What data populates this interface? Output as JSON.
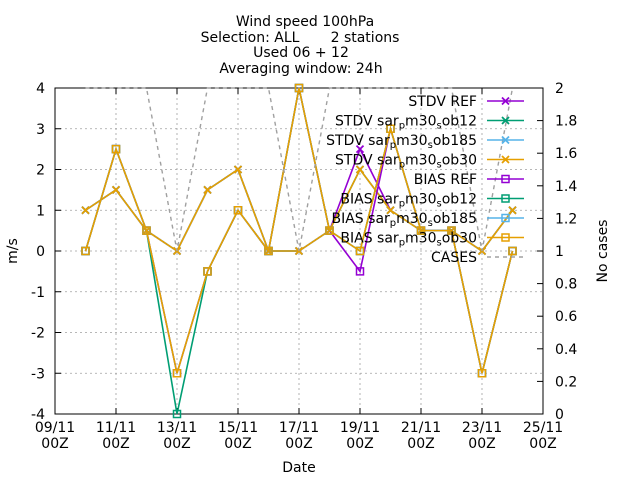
{
  "title_lines": [
    "Wind speed 100hPa",
    "Selection: ALL       2 stations",
    "Used 06 + 12",
    "Averaging window: 24h"
  ],
  "colors": {
    "ref": "#9400d3",
    "m30sob12": "#009e73",
    "m30sob185": "#56b4e9",
    "m30sob30": "#e69f00",
    "cases": "#a0a0a0",
    "grid": "#a0a0a0"
  },
  "chart_data": {
    "type": "line",
    "xlabel": "Date",
    "ylabel": "m/s",
    "y2label": "No cases",
    "x_ticks": [
      {
        "top": "09/11",
        "bottom": "00Z"
      },
      {
        "top": "11/11",
        "bottom": "00Z"
      },
      {
        "top": "13/11",
        "bottom": "00Z"
      },
      {
        "top": "15/11",
        "bottom": "00Z"
      },
      {
        "top": "17/11",
        "bottom": "00Z"
      },
      {
        "top": "19/11",
        "bottom": "00Z"
      },
      {
        "top": "21/11",
        "bottom": "00Z"
      },
      {
        "top": "23/11",
        "bottom": "00Z"
      },
      {
        "top": "25/11",
        "bottom": "00Z"
      }
    ],
    "xlim": [
      9,
      25
    ],
    "ylim": [
      -4,
      4
    ],
    "y_ticks": [
      "-4",
      "-3",
      "-2",
      "-1",
      "0",
      "1",
      "2",
      "3",
      "4"
    ],
    "y2lim": [
      0,
      2
    ],
    "y2_ticks": [
      "0",
      "0.2",
      "0.4",
      "0.6",
      "0.8",
      "1",
      "1.2",
      "1.4",
      "1.6",
      "1.8",
      "2"
    ],
    "grid": true,
    "legend_position": "top-right",
    "series": [
      {
        "name": "STDV REF",
        "color_key": "ref",
        "marker": "x",
        "axis": "y",
        "points": [
          [
            10,
            1
          ],
          [
            11,
            1.5
          ],
          [
            12,
            0.5
          ],
          [
            13,
            0
          ],
          [
            14,
            1.5
          ],
          [
            15,
            2
          ],
          [
            16,
            0
          ],
          [
            17,
            0
          ],
          [
            18,
            0.5
          ],
          [
            19,
            2.5
          ],
          [
            20,
            1
          ],
          [
            21,
            0.5
          ],
          [
            22,
            0.5
          ],
          [
            23,
            0
          ],
          [
            24,
            1
          ]
        ]
      },
      {
        "name": "STDV sar_pm30_sob12",
        "color_key": "m30sob12",
        "marker": "x",
        "axis": "y",
        "points": [
          [
            10,
            1
          ],
          [
            11,
            1.5
          ],
          [
            12,
            0.5
          ],
          [
            13,
            0
          ],
          [
            14,
            1.5
          ],
          [
            15,
            2
          ],
          [
            16,
            0
          ],
          [
            17,
            0
          ],
          [
            18,
            0.5
          ],
          [
            19,
            2
          ],
          [
            20,
            1
          ],
          [
            21,
            0.5
          ],
          [
            22,
            0.5
          ],
          [
            23,
            0
          ],
          [
            24,
            1
          ]
        ]
      },
      {
        "name": "STDV sar_pm30_sob185",
        "color_key": "m30sob185",
        "marker": "x",
        "axis": "y",
        "points": [
          [
            10,
            1
          ],
          [
            11,
            1.5
          ],
          [
            12,
            0.5
          ],
          [
            13,
            0
          ],
          [
            14,
            1.5
          ],
          [
            15,
            2
          ],
          [
            16,
            0
          ],
          [
            17,
            0
          ],
          [
            18,
            0.5
          ],
          [
            19,
            2
          ],
          [
            20,
            1
          ],
          [
            21,
            0.5
          ],
          [
            22,
            0.5
          ],
          [
            23,
            0
          ],
          [
            24,
            1
          ]
        ]
      },
      {
        "name": "STDV sar_pm30_sob30",
        "color_key": "m30sob30",
        "marker": "x",
        "axis": "y",
        "points": [
          [
            10,
            1
          ],
          [
            11,
            1.5
          ],
          [
            12,
            0.5
          ],
          [
            13,
            0
          ],
          [
            14,
            1.5
          ],
          [
            15,
            2
          ],
          [
            16,
            0
          ],
          [
            17,
            0
          ],
          [
            18,
            0.5
          ],
          [
            19,
            2
          ],
          [
            20,
            1
          ],
          [
            21,
            0.5
          ],
          [
            22,
            0.5
          ],
          [
            23,
            0
          ],
          [
            24,
            1
          ]
        ]
      },
      {
        "name": "BIAS REF",
        "color_key": "ref",
        "marker": "square",
        "axis": "y",
        "points": [
          [
            10,
            0
          ],
          [
            11,
            2.5
          ],
          [
            12,
            0.5
          ],
          [
            13,
            -3
          ],
          [
            14,
            -0.5
          ],
          [
            15,
            1
          ],
          [
            16,
            0
          ],
          [
            17,
            4
          ],
          [
            18,
            0.5
          ],
          [
            19,
            -0.5
          ],
          [
            20,
            3
          ],
          [
            21,
            0.5
          ],
          [
            22,
            0.5
          ],
          [
            23,
            -3
          ],
          [
            24,
            0
          ]
        ]
      },
      {
        "name": "BIAS sar_pm30_sob12",
        "color_key": "m30sob12",
        "marker": "square",
        "axis": "y",
        "points": [
          [
            10,
            0
          ],
          [
            11,
            2.5
          ],
          [
            12,
            0.5
          ],
          [
            13,
            -4
          ],
          [
            14,
            -0.5
          ],
          [
            15,
            1
          ],
          [
            16,
            0
          ],
          [
            17,
            4
          ],
          [
            18,
            0.5
          ],
          [
            19,
            0
          ],
          [
            20,
            3
          ],
          [
            21,
            0.5
          ],
          [
            22,
            0.5
          ],
          [
            23,
            -3
          ],
          [
            24,
            0
          ]
        ]
      },
      {
        "name": "BIAS sar_pm30_sob185",
        "color_key": "m30sob185",
        "marker": "square",
        "axis": "y",
        "points": [
          [
            10,
            0
          ],
          [
            11,
            2.5
          ],
          [
            12,
            0.5
          ],
          [
            13,
            -3
          ],
          [
            14,
            -0.5
          ],
          [
            15,
            1
          ],
          [
            16,
            0
          ],
          [
            17,
            4
          ],
          [
            18,
            0.5
          ],
          [
            19,
            0
          ],
          [
            20,
            3
          ],
          [
            21,
            0.5
          ],
          [
            22,
            0.5
          ],
          [
            23,
            -3
          ],
          [
            24,
            0
          ]
        ]
      },
      {
        "name": "BIAS sar_pm30_sob30",
        "color_key": "m30sob30",
        "marker": "square",
        "axis": "y",
        "points": [
          [
            10,
            0
          ],
          [
            11,
            2.5
          ],
          [
            12,
            0.5
          ],
          [
            13,
            -3
          ],
          [
            14,
            -0.5
          ],
          [
            15,
            1
          ],
          [
            16,
            0
          ],
          [
            17,
            4
          ],
          [
            18,
            0.5
          ],
          [
            19,
            0
          ],
          [
            20,
            3
          ],
          [
            21,
            0.5
          ],
          [
            22,
            0.5
          ],
          [
            23,
            -3
          ],
          [
            24,
            0
          ]
        ]
      },
      {
        "name": "CASES",
        "color_key": "cases",
        "marker": "none",
        "dashed": true,
        "axis": "y2",
        "points": [
          [
            10,
            2
          ],
          [
            11,
            2
          ],
          [
            12,
            2
          ],
          [
            13,
            1
          ],
          [
            14,
            2
          ],
          [
            15,
            2
          ],
          [
            16,
            2
          ],
          [
            17,
            1
          ],
          [
            18,
            2
          ],
          [
            19,
            2
          ],
          [
            20,
            2
          ],
          [
            21,
            2
          ],
          [
            22,
            2
          ],
          [
            23,
            1
          ],
          [
            24,
            2
          ]
        ]
      }
    ]
  }
}
